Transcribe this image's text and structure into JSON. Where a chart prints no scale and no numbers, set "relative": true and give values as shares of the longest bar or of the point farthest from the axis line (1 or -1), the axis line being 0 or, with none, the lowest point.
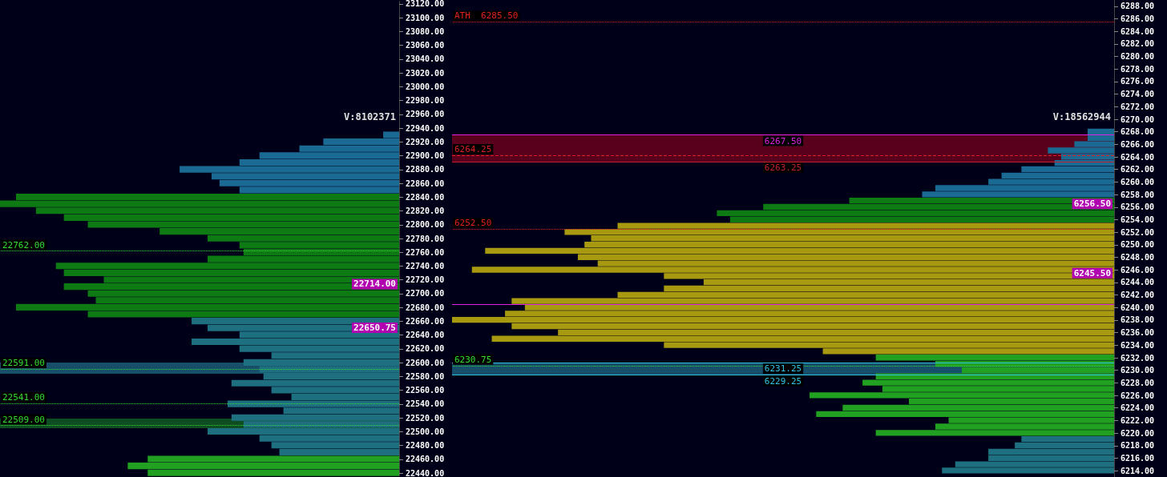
{
  "chart_data": [
    {
      "type": "bar",
      "orientation": "horizontal",
      "relative": true,
      "grid": false,
      "ylim": [
        22436,
        23124
      ],
      "yticks": [
        {
          "value": 22440,
          "label": "22440.00"
        },
        {
          "value": 22460,
          "label": "22460.00"
        },
        {
          "value": 22480,
          "label": "22480.00"
        },
        {
          "value": 22500,
          "label": "22500.00"
        },
        {
          "value": 22520,
          "label": "22520.00"
        },
        {
          "value": 22540,
          "label": "22540.00"
        },
        {
          "value": 22560,
          "label": "22560.00"
        },
        {
          "value": 22580,
          "label": "22580.00"
        },
        {
          "value": 22600,
          "label": "22600.00"
        },
        {
          "value": 22620,
          "label": "22620.00"
        },
        {
          "value": 22640,
          "label": "22640.00"
        },
        {
          "value": 22660,
          "label": "22660.00"
        },
        {
          "value": 22680,
          "label": "22680.00"
        },
        {
          "value": 22700,
          "label": "22700.00"
        },
        {
          "value": 22720,
          "label": "22720.00"
        },
        {
          "value": 22740,
          "label": "22740.00"
        },
        {
          "value": 22760,
          "label": "22760.00"
        },
        {
          "value": 22780,
          "label": "22780.00"
        },
        {
          "value": 22800,
          "label": "22800.00"
        },
        {
          "value": 22820,
          "label": "22820.00"
        },
        {
          "value": 22840,
          "label": "22840.00"
        },
        {
          "value": 22860,
          "label": "22860.00"
        },
        {
          "value": 22880,
          "label": "22880.00"
        },
        {
          "value": 22900,
          "label": "22900.00"
        },
        {
          "value": 22920,
          "label": "22920.00"
        },
        {
          "value": 22940,
          "label": "22940.00"
        },
        {
          "value": 22960,
          "label": "22960.00"
        },
        {
          "value": 22980,
          "label": "22980.00"
        },
        {
          "value": 23000,
          "label": "23000.00"
        },
        {
          "value": 23020,
          "label": "23020.00"
        },
        {
          "value": 23040,
          "label": "23040.00"
        },
        {
          "value": 23060,
          "label": "23060.00"
        },
        {
          "value": 23080,
          "label": "23080.00"
        },
        {
          "value": 23100,
          "label": "23100.00"
        },
        {
          "value": 23120,
          "label": "23120.00"
        }
      ],
      "series": [
        {
          "color": "#22a022",
          "x": [
            22440,
            22450,
            22460
          ],
          "values": [
            0.63,
            0.68,
            0.63
          ]
        },
        {
          "color": "#1e6f80",
          "x": [
            22470,
            22480,
            22490,
            22500,
            22510,
            22520,
            22530,
            22540,
            22550,
            22560,
            22570,
            22580,
            22590,
            22600,
            22610,
            22620,
            22630,
            22640,
            22650,
            22660
          ],
          "values": [
            0.3,
            0.32,
            0.35,
            0.48,
            0.39,
            0.42,
            0.29,
            0.43,
            0.27,
            0.32,
            0.42,
            0.34,
            0.35,
            0.39,
            0.32,
            0.4,
            0.52,
            0.4,
            0.48,
            0.52
          ]
        },
        {
          "color": "#0e7a14",
          "x": [
            22670,
            22680,
            22690,
            22700,
            22710,
            22720,
            22730,
            22740,
            22750,
            22760,
            22770,
            22780,
            22790,
            22800,
            22810,
            22820,
            22830,
            22840
          ],
          "values": [
            0.78,
            0.96,
            0.76,
            0.78,
            0.84,
            0.74,
            0.84,
            0.86,
            0.48,
            0.39,
            0.4,
            0.48,
            0.6,
            0.78,
            0.84,
            0.91,
            1,
            0.96
          ]
        },
        {
          "color": "#1a6a94",
          "x": [
            22850,
            22860,
            22870,
            22880,
            22890,
            22900,
            22910,
            22920,
            22930
          ],
          "values": [
            0.4,
            0.45,
            0.47,
            0.55,
            0.4,
            0.35,
            0.25,
            0.19,
            0.04
          ]
        }
      ],
      "ref_lines": [
        {
          "axis": "y",
          "value": 22762,
          "label": "22762.00",
          "color": "#33dd33",
          "line_style": "dotted"
        },
        {
          "axis": "y",
          "value": 22591,
          "label": "22591.00",
          "color": "#33dd33",
          "line_style": "dotted"
        },
        {
          "axis": "y",
          "value": 22541,
          "label": "22541.00",
          "color": "#33dd33",
          "line_style": "dotted"
        },
        {
          "axis": "y",
          "value": 22509,
          "label": "22509.00",
          "color": "#33dd33",
          "line_style": "dotted"
        }
      ],
      "bands": [
        {
          "axis": "y",
          "from": 22584,
          "to": 22600,
          "color": "#2a90b0"
        },
        {
          "axis": "y",
          "from": 22505,
          "to": 22519,
          "color": "#1a8a2a"
        }
      ],
      "annotations": [
        "V:8102371",
        {
          "text": "22714.00",
          "y": 22714
        },
        {
          "text": "22650.75",
          "y": 22650.75
        }
      ]
    },
    {
      "type": "bar",
      "orientation": "horizontal",
      "relative": true,
      "grid": false,
      "ylim": [
        6213,
        6289
      ],
      "yticks": [
        {
          "value": 6214,
          "label": "6214.00"
        },
        {
          "value": 6216,
          "label": "6216.00"
        },
        {
          "value": 6218,
          "label": "6218.00"
        },
        {
          "value": 6220,
          "label": "6220.00"
        },
        {
          "value": 6222,
          "label": "6222.00"
        },
        {
          "value": 6224,
          "label": "6224.00"
        },
        {
          "value": 6226,
          "label": "6226.00"
        },
        {
          "value": 6228,
          "label": "6228.00"
        },
        {
          "value": 6230,
          "label": "6230.00"
        },
        {
          "value": 6232,
          "label": "6232.00"
        },
        {
          "value": 6234,
          "label": "6234.00"
        },
        {
          "value": 6236,
          "label": "6236.00"
        },
        {
          "value": 6238,
          "label": "6238.00"
        },
        {
          "value": 6240,
          "label": "6240.00"
        },
        {
          "value": 6242,
          "label": "6242.00"
        },
        {
          "value": 6244,
          "label": "6244.00"
        },
        {
          "value": 6246,
          "label": "6246.00"
        },
        {
          "value": 6248,
          "label": "6248.00"
        },
        {
          "value": 6250,
          "label": "6250.00"
        },
        {
          "value": 6252,
          "label": "6252.00"
        },
        {
          "value": 6254,
          "label": "6254.00"
        },
        {
          "value": 6256,
          "label": "6256.00"
        },
        {
          "value": 6258,
          "label": "6258.00"
        },
        {
          "value": 6260,
          "label": "6260.00"
        },
        {
          "value": 6262,
          "label": "6262.00"
        },
        {
          "value": 6264,
          "label": "6264.00"
        },
        {
          "value": 6266,
          "label": "6266.00"
        },
        {
          "value": 6268,
          "label": "6268.00"
        },
        {
          "value": 6270,
          "label": "6270.00"
        },
        {
          "value": 6272,
          "label": "6272.00"
        },
        {
          "value": 6274,
          "label": "6274.00"
        },
        {
          "value": 6276,
          "label": "6276.00"
        },
        {
          "value": 6278,
          "label": "6278.00"
        },
        {
          "value": 6280,
          "label": "6280.00"
        },
        {
          "value": 6282,
          "label": "6282.00"
        },
        {
          "value": 6284,
          "label": "6284.00"
        },
        {
          "value": 6286,
          "label": "6286.00"
        },
        {
          "value": 6288,
          "label": "6288.00"
        }
      ],
      "series": [
        {
          "color": "#1e6f80",
          "x": [
            6214,
            6215,
            6216,
            6217,
            6218,
            6219
          ],
          "values": [
            0.26,
            0.24,
            0.19,
            0.19,
            0.15,
            0.14
          ]
        },
        {
          "color": "#22a022",
          "x": [
            6220,
            6221,
            6222,
            6223,
            6224,
            6225,
            6226,
            6227,
            6228,
            6229,
            6230,
            6231,
            6232
          ],
          "values": [
            0.36,
            0.27,
            0.25,
            0.45,
            0.41,
            0.31,
            0.46,
            0.35,
            0.38,
            0.36,
            0.23,
            0.27,
            0.36
          ]
        },
        {
          "color": "#a89a10",
          "x": [
            6233,
            6234,
            6235,
            6236,
            6237,
            6238,
            6239,
            6240,
            6241,
            6242,
            6243,
            6244,
            6245,
            6246,
            6247,
            6248,
            6249,
            6250,
            6251,
            6252,
            6253
          ],
          "values": [
            0.44,
            0.68,
            0.94,
            0.84,
            0.91,
            1,
            0.92,
            0.89,
            0.91,
            0.75,
            0.68,
            0.62,
            0.68,
            0.97,
            0.78,
            0.81,
            0.95,
            0.8,
            0.79,
            0.83,
            0.75
          ]
        },
        {
          "color": "#0e7a14",
          "x": [
            6254,
            6255,
            6256,
            6257
          ],
          "values": [
            0.58,
            0.6,
            0.53,
            0.4
          ]
        },
        {
          "color": "#1a6a94",
          "x": [
            6258,
            6259,
            6260,
            6261,
            6262,
            6263,
            6264,
            6265,
            6266,
            6267,
            6268
          ],
          "values": [
            0.29,
            0.27,
            0.19,
            0.17,
            0.14,
            0.09,
            0.08,
            0.1,
            0.06,
            0.04,
            0.04
          ]
        }
      ],
      "ref_lines": [
        {
          "axis": "y",
          "value": 6285.5,
          "label": "ATH  6285.50",
          "color": "#e02020",
          "line_style": "dotted"
        },
        {
          "axis": "y",
          "value": 6267.5,
          "label": "6267.50",
          "color": "#e020e0",
          "line_style": "solid"
        },
        {
          "axis": "y",
          "value": 6264.25,
          "label": "6264.25",
          "color": "#e02020",
          "line_style": "dashed"
        },
        {
          "axis": "y",
          "value": 6263.25,
          "label": "6263.25",
          "color": "#c02030",
          "line_style": "solid"
        },
        {
          "axis": "y",
          "value": 6252.5,
          "label": "6252.50",
          "color": "#e02020",
          "line_style": "dotted"
        },
        {
          "axis": "y",
          "value": 6240.5,
          "color": "#e020e0",
          "line_style": "solid"
        },
        {
          "axis": "y",
          "value": 6231.25,
          "label": "6231.25",
          "color": "#30c0e0",
          "line_style": "solid"
        },
        {
          "axis": "y",
          "value": 6230.75,
          "label": "6230.75",
          "color": "#33dd33",
          "line_style": "dotted"
        },
        {
          "axis": "y",
          "value": 6229.25,
          "label": "6229.25",
          "color": "#30c0e0",
          "line_style": "solid"
        }
      ],
      "bands": [
        {
          "axis": "y",
          "from": 6263.25,
          "to": 6267.5,
          "color": "#a00020"
        },
        {
          "axis": "y",
          "from": 6229.25,
          "to": 6231.25,
          "color": "#2a90b0"
        }
      ],
      "annotations": [
        "V:18562944",
        {
          "text": "6256.50",
          "y": 6256.5
        },
        {
          "text": "6245.50",
          "y": 6245.5
        }
      ]
    }
  ]
}
